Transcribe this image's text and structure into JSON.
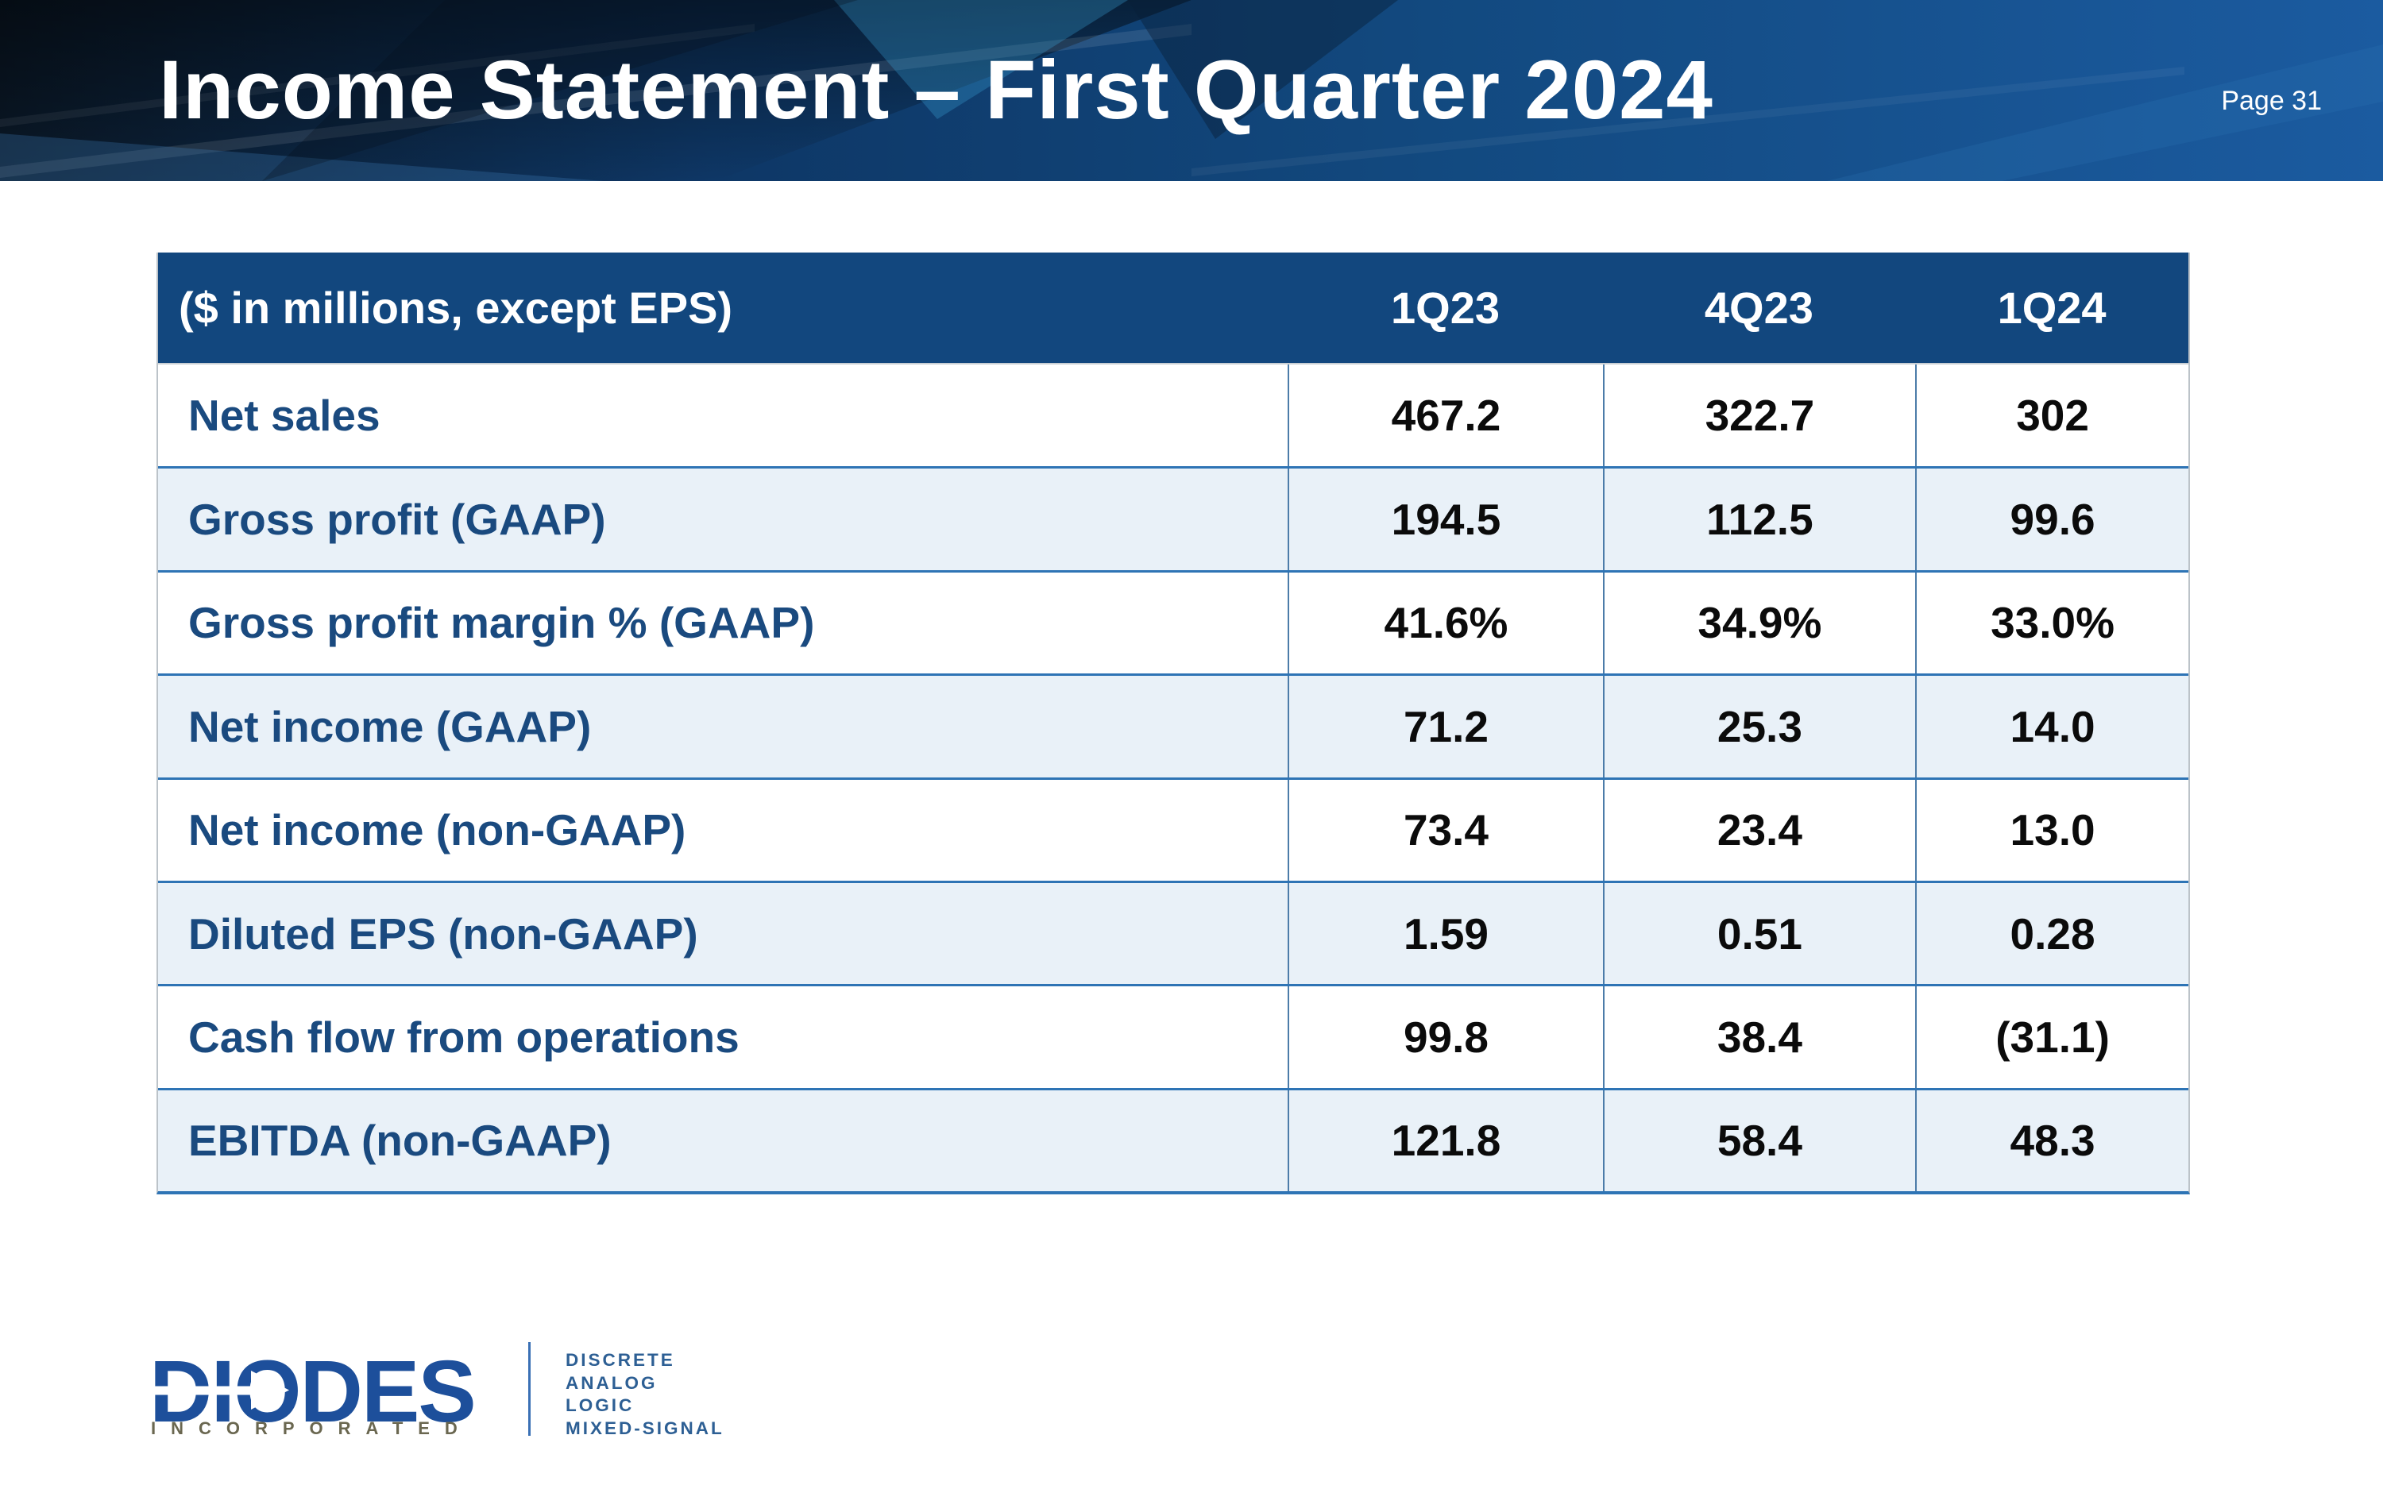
{
  "banner": {
    "title": "Income Statement – First Quarter 2024",
    "page_label": "Page 31"
  },
  "table": {
    "header": {
      "label": "($ in millions, except EPS)",
      "columns": [
        "1Q23",
        "4Q23",
        "1Q24"
      ]
    },
    "rows": [
      {
        "label": "Net sales",
        "values": [
          "467.2",
          "322.7",
          "302"
        ]
      },
      {
        "label": "Gross profit (GAAP)",
        "values": [
          "194.5",
          "112.5",
          "99.6"
        ]
      },
      {
        "label": "Gross profit margin % (GAAP)",
        "values": [
          "41.6%",
          "34.9%",
          "33.0%"
        ]
      },
      {
        "label": "Net income (GAAP)",
        "values": [
          "71.2",
          "25.3",
          "14.0"
        ]
      },
      {
        "label": "Net income (non-GAAP)",
        "values": [
          "73.4",
          "23.4",
          "13.0"
        ]
      },
      {
        "label": "Diluted EPS (non-GAAP)",
        "values": [
          "1.59",
          "0.51",
          "0.28"
        ]
      },
      {
        "label": "Cash flow from operations",
        "values": [
          "99.8",
          "38.4",
          "(31.1)"
        ]
      },
      {
        "label": "EBITDA (non-GAAP)",
        "values": [
          "121.8",
          "58.4",
          "48.3"
        ]
      }
    ]
  },
  "logo": {
    "wordmark": "DIODES",
    "incorporated": "INCORPORATED",
    "tagline": [
      "DISCRETE",
      "ANALOG",
      "LOGIC",
      "MIXED-SIGNAL"
    ]
  },
  "colors": {
    "header-bg": "#12477E",
    "row-alt-bg": "#E9F1F8",
    "row-line": "#2E74B5",
    "grid-line": "#4C7CA9",
    "label-text": "#1A4A7F",
    "value-text": "#0B0B0B",
    "title-text": "#FFFFFF",
    "banner-left": "#0A1827",
    "banner-right": "#1B5BA0",
    "logo-blue": "#1D4F9B",
    "incorporated-text": "#6A6750",
    "tagline-text": "#2D5F94"
  }
}
